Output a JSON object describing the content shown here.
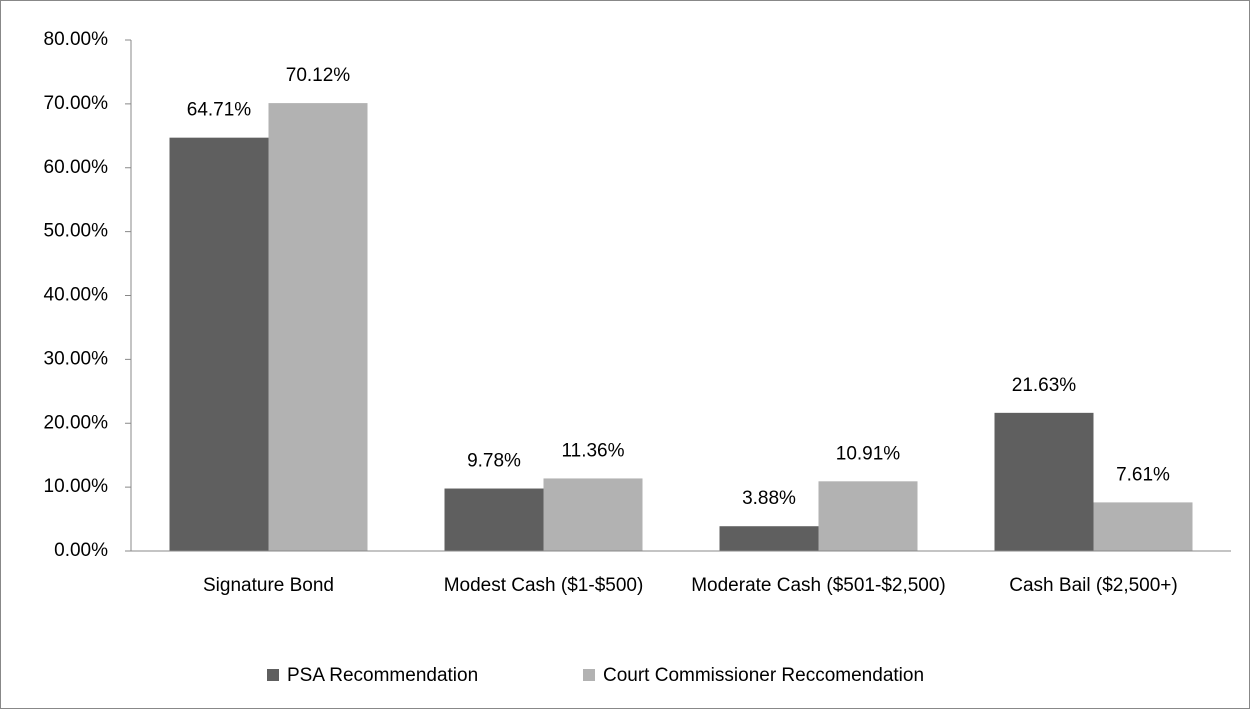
{
  "chart_data": {
    "type": "bar",
    "categories": [
      "Signature Bond",
      "Modest Cash ($1-$500)",
      "Moderate Cash ($501-$2,500)",
      "Cash Bail ($2,500+)"
    ],
    "series": [
      {
        "name": "PSA Recommendation",
        "color": "#5f5f5f",
        "values": [
          64.71,
          9.78,
          3.88,
          21.63
        ],
        "value_labels": [
          "64.71%",
          "9.78%",
          "3.88%",
          "21.63%"
        ]
      },
      {
        "name": "Court Commissioner Reccomendation",
        "color": "#b2b2b2",
        "values": [
          70.12,
          11.36,
          10.91,
          7.61
        ],
        "value_labels": [
          "70.12%",
          "11.36%",
          "10.91%",
          "7.61%"
        ]
      }
    ],
    "ylim": [
      0,
      80
    ],
    "yticks": [
      {
        "value": 0,
        "label": "0.00%"
      },
      {
        "value": 10,
        "label": "10.00%"
      },
      {
        "value": 20,
        "label": "20.00%"
      },
      {
        "value": 30,
        "label": "30.00%"
      },
      {
        "value": 40,
        "label": "40.00%"
      },
      {
        "value": 50,
        "label": "50.00%"
      },
      {
        "value": 60,
        "label": "60.00%"
      },
      {
        "value": 70,
        "label": "70.00%"
      },
      {
        "value": 80,
        "label": "80.00%"
      }
    ],
    "grid": false,
    "legend": "bottom"
  }
}
